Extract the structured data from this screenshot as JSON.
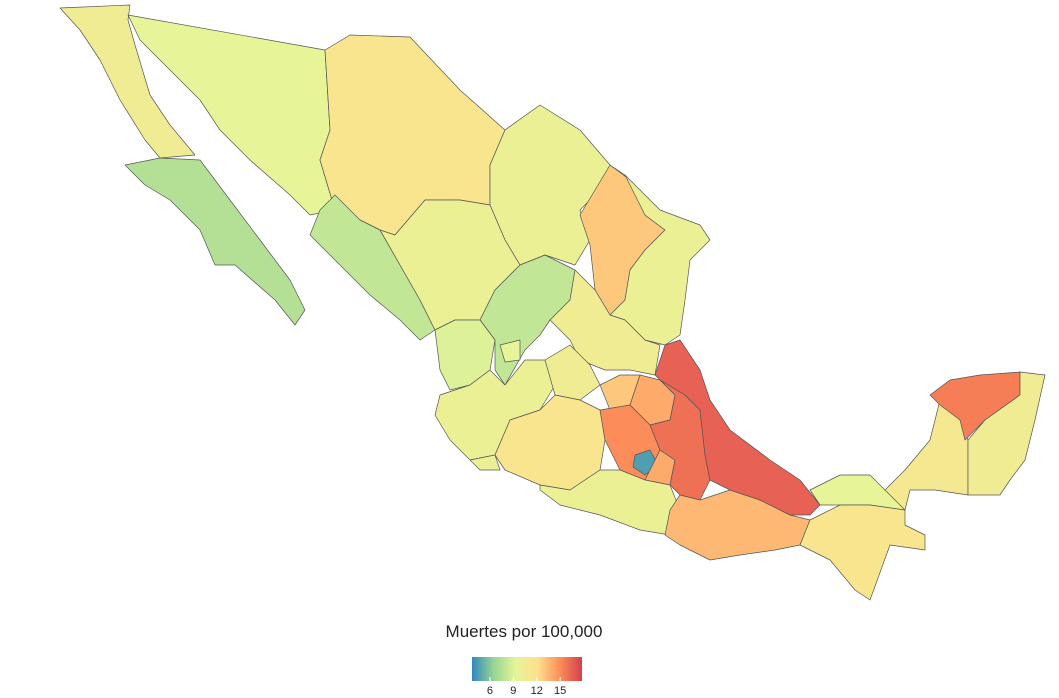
{
  "chart_data": {
    "type": "choropleth",
    "values": [
      10.5,
      7.5,
      9.5,
      11.5,
      10,
      13,
      10,
      8,
      10,
      8,
      10.5,
      9,
      9.5,
      10,
      10.5,
      13,
      14,
      10,
      11.5,
      15,
      4.5,
      14,
      12,
      16,
      10,
      13.5,
      16.5,
      9.5,
      11.5,
      11,
      15.5,
      10.5
    ],
    "colormap": [
      "#3288bd",
      "#99d594",
      "#e6f598",
      "#fee08b",
      "#fc8d59",
      "#d53e4f"
    ],
    "clim": [
      3.7,
      17.8
    ],
    "legend_title": "Muertes por 100,000",
    "ticks": [
      6,
      9,
      12,
      15
    ]
  }
}
